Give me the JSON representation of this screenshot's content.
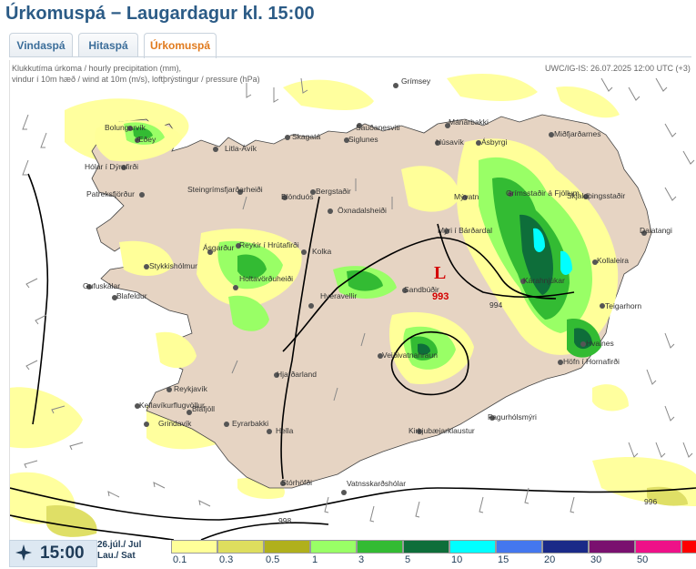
{
  "title": "Úrkomuspá − Laugardagur kl. 15:00",
  "tabs": [
    {
      "label": "Vindaspá",
      "active": false
    },
    {
      "label": "Hitaspá",
      "active": false
    },
    {
      "label": "Úrkomuspá",
      "active": true
    }
  ],
  "map": {
    "header_left_1": "Klukkutíma úrkoma / hourly precipitation (mm),",
    "header_left_2": "vindur í 10m hæð / wind at 10m (m/s), loftþrýstingur / pressure (hPa)",
    "header_right": "UWC/IG-IS: 26.07.2025 12:00 UTC (+3)",
    "low_symbol": "L",
    "low_value": "993",
    "isobars": [
      "994",
      "996",
      "998"
    ],
    "places": [
      "Grímsey",
      "Sauðanesviti",
      "Mánárbakki",
      "Húsavík",
      "Ásbyrgi",
      "Miðfjarðarnes",
      "Bolungarvík",
      "Æðey",
      "Hólar í Dýrafirði",
      "Litla-Ávík",
      "Skagatá",
      "Siglunes",
      "Patreksfjörður",
      "Steingrímsfjarðarheiði",
      "Blönduós",
      "Bergstaðir",
      "Öxnadalsheiði",
      "Mývatn",
      "Grímsstaðir á Fjöllum",
      "Skjaldþingsstaðir",
      "Ásgarður",
      "Reykir í Hrútafirði",
      "Kolka",
      "Mýri í Bárðardal",
      "Dalatangi",
      "Stykkishólmur",
      "Holtavörðuheiði",
      "Kollaleira",
      "Gufuskálar",
      "Blafeldur",
      "Hveravellir",
      "Sandbúðir",
      "Kárahnjúkar",
      "Teigarhorn",
      "Veiðivatnahraun",
      "Hvalnes",
      "Höfn í Hornafirði",
      "Hjarðarland",
      "Reykjavík",
      "Keflavíkurflugvöllur",
      "Bláfjöll",
      "Grindavík",
      "Eyrarbakki",
      "Hella",
      "Kirkjubæjarklaustur",
      "Fagurhólsmýri",
      "Stórhöfði",
      "Vatnsskarðshólar"
    ]
  },
  "footer": {
    "time": "15:00",
    "date_line1": "26.júl./ Jul",
    "date_line2": "Lau./ Sat",
    "clock_icon": "star-clock-icon"
  },
  "legend": {
    "levels": [
      "0.1",
      "0.3",
      "0.5",
      "1",
      "3",
      "5",
      "10",
      "15",
      "20",
      "30",
      "50"
    ],
    "colors": [
      "#ffff99",
      "#dede5e",
      "#b0b01c",
      "#99ff66",
      "#33bb33",
      "#0e6e3a",
      "#00ffff",
      "#4477ee",
      "#1a2a88",
      "#7a116f",
      "#ee1188",
      "#ff0000"
    ]
  },
  "colors": {
    "land": "#e6d4c3",
    "sea": "#ffffff",
    "title": "#2b5b86",
    "active_tab": "#e07a1d"
  }
}
